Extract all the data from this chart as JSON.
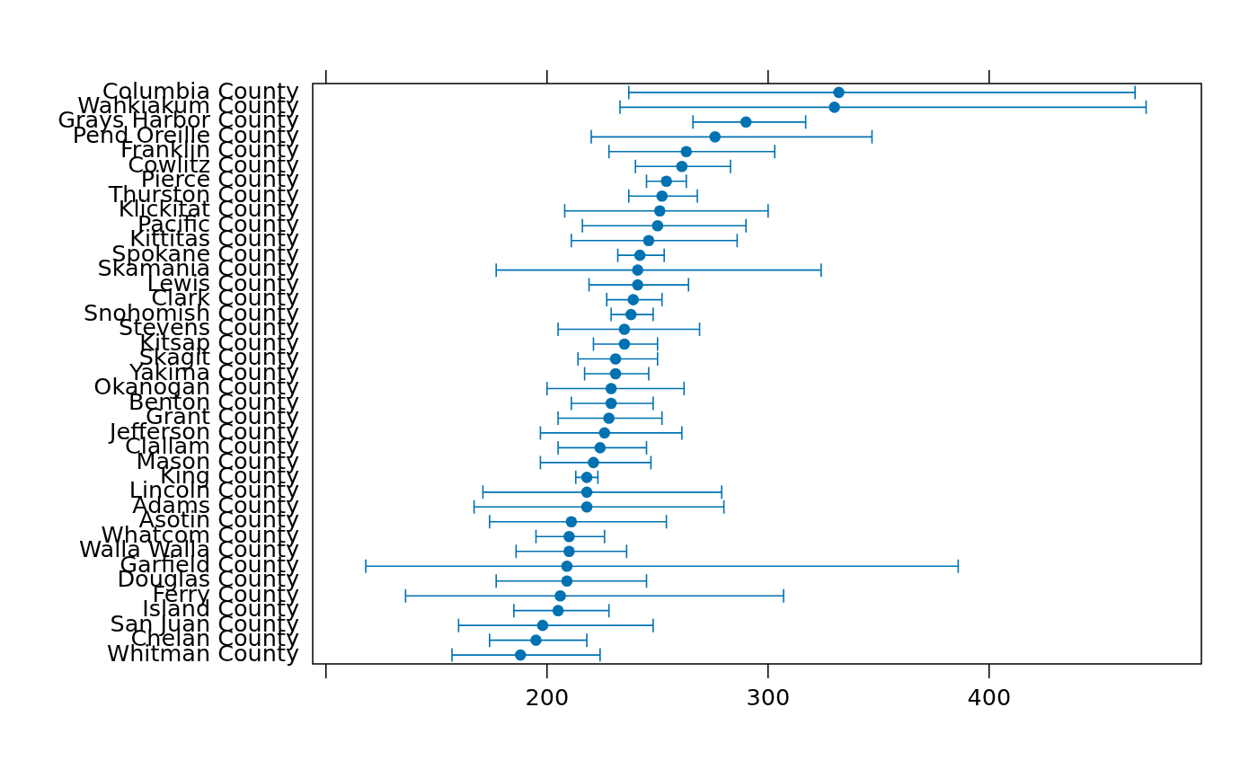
{
  "chart_data": {
    "type": "scatter",
    "orientation": "horizontal",
    "marker": "circle",
    "color": "#0072b2",
    "categories": [
      "Columbia County",
      "Wahkiakum County",
      "Grays Harbor County",
      "Pend Oreille County",
      "Franklin County",
      "Cowlitz County",
      "Pierce County",
      "Thurston County",
      "Klickitat County",
      "Pacific County",
      "Kittitas County",
      "Spokane County",
      "Skamania County",
      "Lewis County",
      "Clark County",
      "Snohomish County",
      "Stevens County",
      "Kitsap County",
      "Skagit County",
      "Yakima County",
      "Okanogan County",
      "Benton County",
      "Grant County",
      "Jefferson County",
      "Clallam County",
      "Mason County",
      "King County",
      "Lincoln County",
      "Adams County",
      "Asotin County",
      "Whatcom County",
      "Walla Walla County",
      "Garfield County",
      "Douglas County",
      "Ferry County",
      "Island County",
      "San Juan County",
      "Chelan County",
      "Whitman County"
    ],
    "values": [
      332,
      330,
      290,
      276,
      263,
      261,
      254,
      252,
      251,
      250,
      246,
      242,
      241,
      241,
      239,
      238,
      235,
      235,
      231,
      231,
      229,
      229,
      228,
      226,
      224,
      221,
      218,
      218,
      218,
      211,
      210,
      210,
      209,
      209,
      206,
      205,
      198,
      195,
      188
    ],
    "errors": [
      [
        237,
        466
      ],
      [
        233,
        471
      ],
      [
        266,
        317
      ],
      [
        220,
        347
      ],
      [
        228,
        303
      ],
      [
        240,
        283
      ],
      [
        245,
        263
      ],
      [
        237,
        268
      ],
      [
        208,
        300
      ],
      [
        216,
        290
      ],
      [
        211,
        286
      ],
      [
        232,
        253
      ],
      [
        177,
        324
      ],
      [
        219,
        264
      ],
      [
        227,
        252
      ],
      [
        229,
        248
      ],
      [
        205,
        269
      ],
      [
        221,
        250
      ],
      [
        214,
        250
      ],
      [
        217,
        246
      ],
      [
        200,
        262
      ],
      [
        211,
        248
      ],
      [
        205,
        252
      ],
      [
        197,
        261
      ],
      [
        205,
        245
      ],
      [
        197,
        247
      ],
      [
        213,
        223
      ],
      [
        171,
        279
      ],
      [
        167,
        280
      ],
      [
        174,
        254
      ],
      [
        195,
        226
      ],
      [
        186,
        236
      ],
      [
        118,
        386
      ],
      [
        177,
        245
      ],
      [
        136,
        307
      ],
      [
        185,
        228
      ],
      [
        160,
        248
      ],
      [
        174,
        218
      ],
      [
        157,
        224
      ]
    ],
    "xlim": [
      94,
      496
    ],
    "xticks": [
      {
        "value": 100,
        "label": null
      },
      200,
      300,
      400
    ]
  }
}
